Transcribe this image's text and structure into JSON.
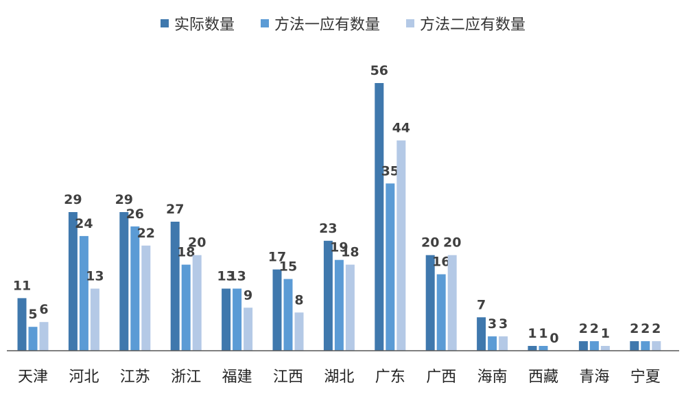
{
  "chart_data": {
    "type": "bar",
    "title": "",
    "xlabel": "",
    "ylabel": "",
    "ylim": [
      0,
      60
    ],
    "grid": false,
    "legend_position": "top",
    "categories": [
      "天津",
      "河北",
      "江苏",
      "浙江",
      "福建",
      "江西",
      "湖北",
      "广东",
      "广西",
      "海南",
      "西藏",
      "青海",
      "宁夏"
    ],
    "series": [
      {
        "name": "实际数量",
        "color": "#3f78ad",
        "values": [
          11,
          29,
          29,
          27,
          13,
          17,
          23,
          56,
          20,
          7,
          1,
          2,
          2
        ]
      },
      {
        "name": "方法一应有数量",
        "color": "#5b9bd5",
        "values": [
          5,
          24,
          26,
          18,
          13,
          15,
          19,
          35,
          16,
          3,
          1,
          2,
          2
        ]
      },
      {
        "name": "方法二应有数量",
        "color": "#b4c9e6",
        "values": [
          6,
          13,
          22,
          20,
          9,
          8,
          18,
          44,
          20,
          3,
          0,
          1,
          2
        ]
      }
    ]
  }
}
